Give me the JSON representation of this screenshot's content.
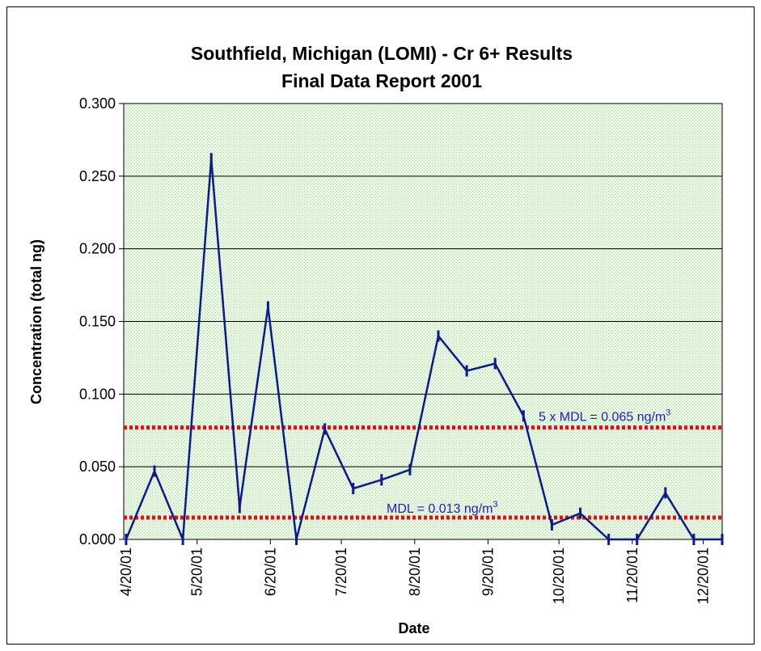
{
  "chart_data": {
    "type": "line",
    "title": [
      "Southfield, Michigan (LOMI) - Cr 6+ Results",
      "Final Data Report 2001"
    ],
    "x_label": "Date",
    "y_label": "Concentration (total ng)",
    "x": [
      "2001-04-20",
      "2001-05-02",
      "2001-05-14",
      "2001-05-26",
      "2001-06-07",
      "2001-06-19",
      "2001-07-01",
      "2001-07-13",
      "2001-07-25",
      "2001-08-06",
      "2001-08-18",
      "2001-08-30",
      "2001-09-11",
      "2001-09-23",
      "2001-10-05",
      "2001-10-17",
      "2001-10-29",
      "2001-11-10",
      "2001-11-22",
      "2001-12-04",
      "2001-12-16",
      "2001-12-28"
    ],
    "series": [
      {
        "color": "#0b1a8c",
        "values": [
          0,
          0.047,
          0,
          0.262,
          0.022,
          0.16,
          0,
          0.076,
          0.035,
          0.041,
          0.048,
          0.14,
          0.116,
          0.121,
          0.085,
          0.01,
          0.018,
          0,
          0,
          0.032,
          0,
          0
        ]
      }
    ],
    "xlim": [
      "2001-04-19",
      "2001-12-28"
    ],
    "xticks": [
      {
        "value": "2001-04-20",
        "label": "4/20/01"
      },
      {
        "value": "2001-05-20",
        "label": "5/20/01"
      },
      {
        "value": "2001-06-20",
        "label": "6/20/01"
      },
      {
        "value": "2001-07-20",
        "label": "7/20/01"
      },
      {
        "value": "2001-08-20",
        "label": "8/20/01"
      },
      {
        "value": "2001-09-20",
        "label": "9/20/01"
      },
      {
        "value": "2001-10-20",
        "label": "10/20/01"
      },
      {
        "value": "2001-11-20",
        "label": "11/20/01"
      },
      {
        "value": "2001-12-20",
        "label": "12/20/01"
      }
    ],
    "ylim": [
      0,
      0.3
    ],
    "yticks": [
      {
        "value": 0,
        "label": "0.000"
      },
      {
        "value": 0.05,
        "label": "0.050"
      },
      {
        "value": 0.1,
        "label": "0.100"
      },
      {
        "value": 0.15,
        "label": "0.150"
      },
      {
        "value": 0.2,
        "label": "0.200"
      },
      {
        "value": 0.25,
        "label": "0.250"
      },
      {
        "value": 0.3,
        "label": "0.300"
      }
    ],
    "grid": true,
    "reference_lines": [
      {
        "value": 0.015,
        "label": "MDL = 0.013 ng/m",
        "label_sup": "3",
        "color": "#e01010"
      },
      {
        "value": 0.077,
        "label": "5 x MDL = 0.065 ng/m",
        "label_sup": "3",
        "color": "#e01010"
      }
    ]
  }
}
